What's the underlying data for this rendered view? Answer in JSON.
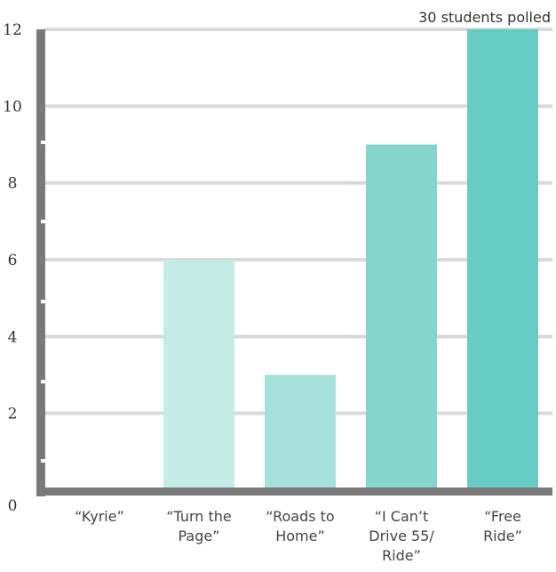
{
  "colors": {
    "gridline": "#d9d9d9",
    "axis": "#7a7a7a",
    "bars": [
      "#c5ebe7",
      "#c5ebe7",
      "#a6e0da",
      "#86d5cd",
      "#66ccc4"
    ]
  },
  "chart_data": {
    "type": "bar",
    "title": "",
    "annotation": "30 students polled",
    "xlabel": "",
    "ylabel": "",
    "categories": [
      [
        "“Kyrie”"
      ],
      [
        "“Turn the",
        "Page”"
      ],
      [
        "“Roads to",
        "Home”"
      ],
      [
        "“I Can’t",
        "Drive 55/",
        "Ride”"
      ],
      [
        "“Free",
        "Ride”"
      ]
    ],
    "values": [
      0,
      6,
      3,
      9,
      12
    ],
    "ylim": [
      0,
      12
    ],
    "yticks": [
      0,
      2,
      4,
      6,
      8,
      10,
      12
    ],
    "grid": true
  }
}
